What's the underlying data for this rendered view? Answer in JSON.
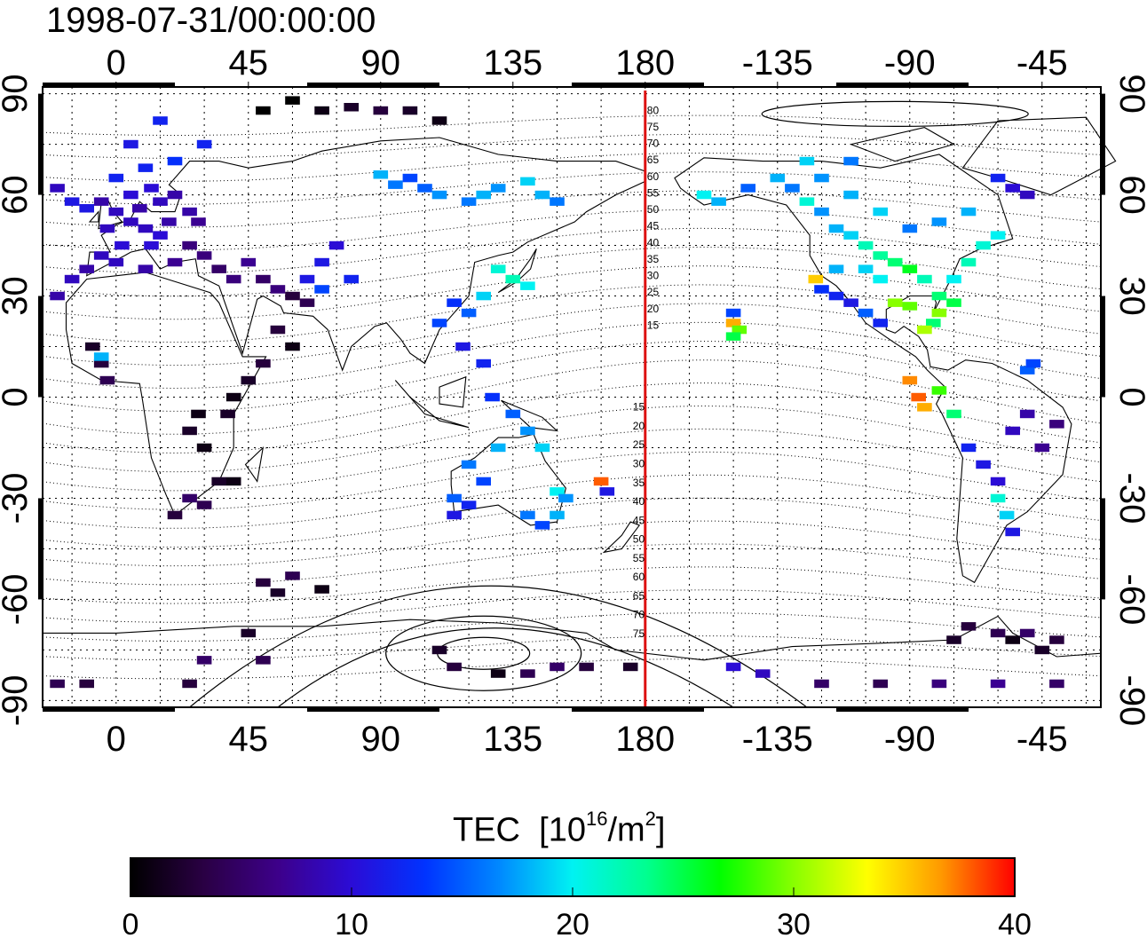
{
  "header": {
    "timestamp": "1998-07-31/00:00:00"
  },
  "map": {
    "lon_range": [
      -25,
      335
    ],
    "lat_range": [
      -92,
      92
    ],
    "lon_tick_values": [
      0,
      45,
      90,
      135,
      180,
      225,
      270,
      315
    ],
    "lon_tick_labels": [
      "0",
      "45",
      "90",
      "135",
      "180",
      "-135",
      "-90",
      "-45"
    ],
    "lat_tick_values": [
      90,
      60,
      30,
      0,
      -30,
      -60,
      -90
    ],
    "lat_tick_labels": [
      "90",
      "60",
      "30",
      "0",
      "-30",
      "-60",
      "-90"
    ],
    "grid": true,
    "meridian_line": {
      "lon": 180,
      "color": "#dd1111"
    },
    "contour_labels_north": [
      "80",
      "75",
      "70",
      "65",
      "60",
      "55",
      "50",
      "45",
      "40",
      "35",
      "30",
      "25",
      "20",
      "15"
    ],
    "contour_labels_south": [
      "15",
      "20",
      "25",
      "30",
      "35",
      "40",
      "45",
      "50",
      "55",
      "60",
      "65",
      "70",
      "75"
    ],
    "colorbar": {
      "title": "TEC",
      "unit_base": "10",
      "unit_exp": "16",
      "unit_mid": "/m",
      "unit_exp2": "2",
      "min": 0,
      "max": 40,
      "tick_values": [
        0,
        10,
        20,
        30,
        40
      ],
      "tick_labels": [
        "0",
        "10",
        "20",
        "30",
        "40"
      ],
      "colormap": [
        "#000000",
        "#2a0044",
        "#3d008a",
        "#2b0cd6",
        "#0033ff",
        "#0088ff",
        "#00f2f2",
        "#00ff90",
        "#00ff00",
        "#88ff00",
        "#ffff00",
        "#ff9900",
        "#ff0000"
      ]
    }
  },
  "tec_points": [
    [
      0,
      55,
      9
    ],
    [
      5,
      52,
      9
    ],
    [
      10,
      50,
      9
    ],
    [
      8,
      56,
      8
    ],
    [
      15,
      48,
      10
    ],
    [
      -3,
      50,
      9
    ],
    [
      2,
      45,
      10
    ],
    [
      12,
      45,
      10
    ],
    [
      18,
      52,
      8
    ],
    [
      20,
      60,
      8
    ],
    [
      12,
      62,
      10
    ],
    [
      5,
      60,
      10
    ],
    [
      -5,
      58,
      8
    ],
    [
      25,
      55,
      8
    ],
    [
      28,
      52,
      7
    ],
    [
      15,
      58,
      9
    ],
    [
      -10,
      56,
      11
    ],
    [
      -15,
      58,
      11
    ],
    [
      -20,
      62,
      9
    ],
    [
      0,
      65,
      12
    ],
    [
      10,
      68,
      12
    ],
    [
      20,
      70,
      13
    ],
    [
      5,
      75,
      11
    ],
    [
      15,
      82,
      12
    ],
    [
      30,
      75,
      12
    ],
    [
      -5,
      42,
      9
    ],
    [
      -10,
      38,
      8
    ],
    [
      -15,
      35,
      9
    ],
    [
      -20,
      30,
      8
    ],
    [
      0,
      40,
      9
    ],
    [
      10,
      38,
      8
    ],
    [
      20,
      40,
      7
    ],
    [
      25,
      45,
      6
    ],
    [
      30,
      42,
      6
    ],
    [
      35,
      38,
      5
    ],
    [
      40,
      35,
      6
    ],
    [
      45,
      40,
      7
    ],
    [
      50,
      35,
      5
    ],
    [
      55,
      32,
      6
    ],
    [
      60,
      30,
      3
    ],
    [
      65,
      28,
      4
    ],
    [
      55,
      20,
      3
    ],
    [
      60,
      15,
      1
    ],
    [
      50,
      10,
      3
    ],
    [
      45,
      5,
      2
    ],
    [
      40,
      0,
      1
    ],
    [
      38,
      -5,
      2
    ],
    [
      65,
      35,
      11
    ],
    [
      70,
      40,
      11
    ],
    [
      75,
      45,
      10
    ],
    [
      70,
      32,
      14
    ],
    [
      80,
      35,
      12
    ],
    [
      -8,
      15,
      2
    ],
    [
      -5,
      10,
      3
    ],
    [
      -3,
      5,
      4
    ],
    [
      -5,
      12,
      18
    ],
    [
      28,
      -5,
      1
    ],
    [
      25,
      -10,
      2
    ],
    [
      30,
      -15,
      1
    ],
    [
      25,
      -30,
      5
    ],
    [
      30,
      -32,
      4
    ],
    [
      20,
      -35,
      3
    ],
    [
      35,
      -25,
      2
    ],
    [
      40,
      -25,
      1
    ],
    [
      50,
      -55,
      3
    ],
    [
      55,
      -58,
      2
    ],
    [
      70,
      -57,
      1
    ],
    [
      60,
      -53,
      4
    ],
    [
      45,
      -70,
      2
    ],
    [
      50,
      -78,
      4
    ],
    [
      30,
      -78,
      5
    ],
    [
      25,
      -85,
      3
    ],
    [
      -20,
      -85,
      4
    ],
    [
      -10,
      -85,
      3
    ],
    [
      60,
      88,
      0
    ],
    [
      70,
      85,
      1
    ],
    [
      50,
      85,
      0
    ],
    [
      80,
      86,
      2
    ],
    [
      90,
      85,
      3
    ],
    [
      100,
      85,
      2
    ],
    [
      110,
      82,
      1
    ],
    [
      90,
      66,
      18
    ],
    [
      95,
      63,
      16
    ],
    [
      100,
      65,
      14
    ],
    [
      105,
      62,
      15
    ],
    [
      110,
      60,
      17
    ],
    [
      120,
      58,
      16
    ],
    [
      125,
      60,
      18
    ],
    [
      130,
      62,
      17
    ],
    [
      140,
      64,
      19
    ],
    [
      145,
      60,
      18
    ],
    [
      150,
      58,
      16
    ],
    [
      130,
      38,
      21
    ],
    [
      135,
      35,
      22
    ],
    [
      140,
      33,
      20
    ],
    [
      125,
      30,
      19
    ],
    [
      115,
      28,
      13
    ],
    [
      120,
      25,
      15
    ],
    [
      110,
      22,
      14
    ],
    [
      118,
      15,
      11
    ],
    [
      125,
      10,
      12
    ],
    [
      128,
      0,
      13
    ],
    [
      135,
      -5,
      15
    ],
    [
      140,
      -10,
      17
    ],
    [
      145,
      -15,
      19
    ],
    [
      130,
      -15,
      18
    ],
    [
      120,
      -20,
      16
    ],
    [
      125,
      -25,
      14
    ],
    [
      115,
      -30,
      15
    ],
    [
      120,
      -32,
      12
    ],
    [
      115,
      -35,
      11
    ],
    [
      140,
      -35,
      16
    ],
    [
      145,
      -38,
      14
    ],
    [
      150,
      -35,
      18
    ],
    [
      150,
      -28,
      20
    ],
    [
      153,
      -30,
      17
    ],
    [
      165,
      -25,
      38
    ],
    [
      167,
      -28,
      11
    ],
    [
      110,
      -75,
      2
    ],
    [
      115,
      -80,
      3
    ],
    [
      130,
      -82,
      1
    ],
    [
      140,
      -82,
      4
    ],
    [
      150,
      -80,
      5
    ],
    [
      160,
      -80,
      3
    ],
    [
      175,
      -80,
      2
    ],
    [
      210,
      22,
      36
    ],
    [
      212,
      20,
      29
    ],
    [
      210,
      18,
      25
    ],
    [
      210,
      25,
      14
    ],
    [
      200,
      60,
      20
    ],
    [
      205,
      58,
      18
    ],
    [
      215,
      62,
      15
    ],
    [
      225,
      65,
      18
    ],
    [
      230,
      62,
      16
    ],
    [
      235,
      58,
      21
    ],
    [
      240,
      55,
      17
    ],
    [
      245,
      50,
      18
    ],
    [
      250,
      48,
      19
    ],
    [
      255,
      45,
      22
    ],
    [
      260,
      42,
      23
    ],
    [
      265,
      40,
      24
    ],
    [
      270,
      38,
      26
    ],
    [
      275,
      35,
      22
    ],
    [
      280,
      30,
      24
    ],
    [
      285,
      28,
      25
    ],
    [
      260,
      35,
      20
    ],
    [
      255,
      38,
      19
    ],
    [
      245,
      38,
      18
    ],
    [
      238,
      35,
      35
    ],
    [
      240,
      32,
      13
    ],
    [
      245,
      30,
      12
    ],
    [
      250,
      28,
      11
    ],
    [
      255,
      25,
      15
    ],
    [
      260,
      22,
      12
    ],
    [
      265,
      28,
      30
    ],
    [
      270,
      27,
      29
    ],
    [
      280,
      25,
      30
    ],
    [
      278,
      22,
      24
    ],
    [
      275,
      20,
      31
    ],
    [
      285,
      35,
      20
    ],
    [
      290,
      40,
      22
    ],
    [
      295,
      45,
      21
    ],
    [
      300,
      48,
      20
    ],
    [
      290,
      55,
      18
    ],
    [
      280,
      52,
      17
    ],
    [
      270,
      50,
      16
    ],
    [
      260,
      55,
      19
    ],
    [
      250,
      60,
      18
    ],
    [
      240,
      65,
      17
    ],
    [
      235,
      70,
      19
    ],
    [
      250,
      70,
      16
    ],
    [
      300,
      65,
      12
    ],
    [
      305,
      62,
      10
    ],
    [
      310,
      60,
      9
    ],
    [
      270,
      5,
      37
    ],
    [
      273,
      0,
      38
    ],
    [
      275,
      -3,
      36
    ],
    [
      280,
      2,
      28
    ],
    [
      285,
      -5,
      24
    ],
    [
      290,
      -15,
      12
    ],
    [
      295,
      -20,
      11
    ],
    [
      300,
      -25,
      10
    ],
    [
      305,
      -10,
      9
    ],
    [
      310,
      -5,
      8
    ],
    [
      315,
      -15,
      7
    ],
    [
      320,
      -8,
      6
    ],
    [
      300,
      -30,
      21
    ],
    [
      303,
      -35,
      19
    ],
    [
      310,
      8,
      15
    ],
    [
      312,
      10,
      14
    ],
    [
      305,
      -40,
      11
    ],
    [
      285,
      -72,
      2
    ],
    [
      290,
      -68,
      3
    ],
    [
      300,
      -70,
      4
    ],
    [
      305,
      -72,
      1
    ],
    [
      310,
      -70,
      5
    ],
    [
      315,
      -75,
      2
    ],
    [
      320,
      -72,
      3
    ],
    [
      210,
      -80,
      10
    ],
    [
      220,
      -82,
      9
    ],
    [
      240,
      -85,
      5
    ],
    [
      260,
      -85,
      4
    ],
    [
      280,
      -85,
      6
    ],
    [
      300,
      -85,
      7
    ],
    [
      320,
      -85,
      5
    ]
  ]
}
